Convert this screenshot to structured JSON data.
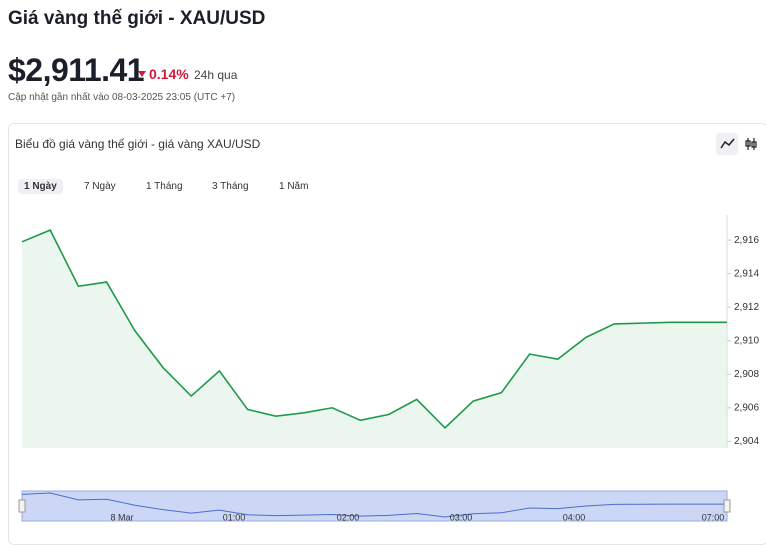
{
  "header": {
    "title": "Giá vàng thế giới - XAU/USD",
    "price": "$2,911.41",
    "change": "0.14%",
    "period": "24h qua",
    "updated": "Cập nhật gần nhất vào 08-03-2025 23:05 (UTC +7)"
  },
  "panel": {
    "title": "Biểu đồ giá vàng thế giới - giá vàng XAU/USD",
    "tabs": [
      "1 Ngày",
      "7 Ngày",
      "1 Tháng",
      "3 Tháng",
      "1 Năm"
    ]
  },
  "navigator": {
    "labels": [
      "8 Mar",
      "01:00",
      "02:00",
      "03:00",
      "04:00",
      "07:00"
    ]
  },
  "chart_data": {
    "type": "line",
    "color": "#1f9a4a",
    "values": [
      2915.9,
      2916.6,
      2913.25,
      2913.5,
      2910.6,
      2908.4,
      2906.7,
      2908.2,
      2905.9,
      2905.5,
      2905.7,
      2906.0,
      2905.25,
      2905.6,
      2906.5,
      2904.8,
      2906.4,
      2906.9,
      2909.2,
      2908.9,
      2910.2,
      2911.0,
      2911.05,
      2911.1,
      2911.1,
      2911.1
    ],
    "ylim": [
      2903.6,
      2917.5
    ],
    "yticks": [
      {
        "value": 2904,
        "label": "2,904"
      },
      {
        "value": 2906,
        "label": "2,906"
      },
      {
        "value": 2908,
        "label": "2,908"
      },
      {
        "value": 2910,
        "label": "2,910"
      },
      {
        "value": 2912,
        "label": "2,912"
      },
      {
        "value": 2914,
        "label": "2,914"
      },
      {
        "value": 2916,
        "label": "2,916"
      }
    ]
  }
}
